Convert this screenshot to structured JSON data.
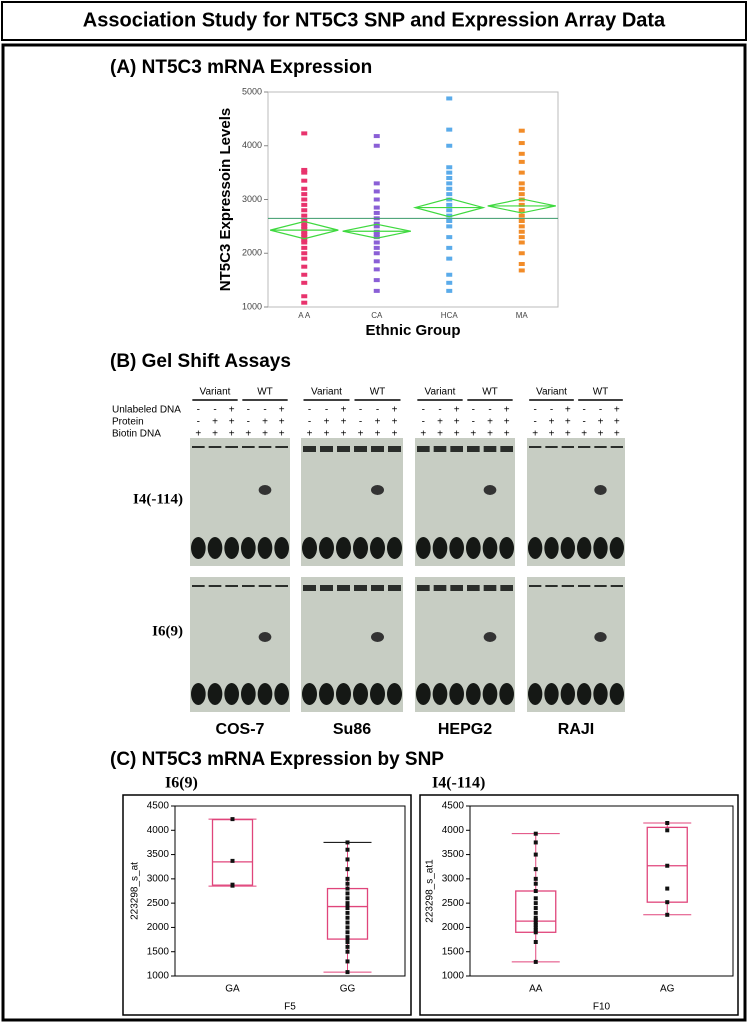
{
  "title": "Association Study for NT5C3 SNP and Expression Array Data",
  "panel_b": {
    "title": "(B)  Gel Shift Assays",
    "groups": [
      "Variant",
      "WT"
    ],
    "rows": [
      "Unlabeled DNA",
      "Protein",
      "Biotin DNA"
    ],
    "signs": [
      [
        "-",
        "-",
        "+",
        "-",
        "-",
        "+"
      ],
      [
        "-",
        "+",
        "+",
        "-",
        "+",
        "+"
      ],
      [
        "+",
        "+",
        "+",
        "+",
        "+",
        "+"
      ]
    ],
    "probes": [
      "I4(-114)",
      "I6(9)"
    ],
    "cell_lines": [
      "COS-7",
      "Su86",
      "HEPG2",
      "RAJI"
    ]
  },
  "panel_c_title": "(C)  NT5C3 mRNA Expression by SNP",
  "chart_data": [
    {
      "type": "strip",
      "title": "(A)  NT5C3 mRNA Expression",
      "x_label": "Ethnic Group",
      "y_label": "NT5C3 Expressoin Levels",
      "categories": [
        "A A",
        "CA",
        "HCA",
        "MA"
      ],
      "colors": [
        "#e8336d",
        "#8a5fd6",
        "#5aabea",
        "#f28c28"
      ],
      "values": [
        [
          1080,
          1200,
          1450,
          1600,
          1750,
          1900,
          2000,
          2100,
          2200,
          2250,
          2300,
          2350,
          2400,
          2450,
          2500,
          2550,
          2600,
          2700,
          2800,
          2900,
          3000,
          3100,
          3200,
          3350,
          3500,
          3550,
          4230
        ],
        [
          1300,
          1500,
          1700,
          1850,
          2000,
          2100,
          2200,
          2300,
          2350,
          2400,
          2500,
          2550,
          2650,
          2750,
          2850,
          3000,
          3150,
          3300,
          4000,
          4180
        ],
        [
          1300,
          1450,
          1600,
          1900,
          2100,
          2300,
          2500,
          2600,
          2700,
          2800,
          2900,
          3000,
          3100,
          3200,
          3300,
          3400,
          3500,
          3600,
          4000,
          4300,
          4880
        ],
        [
          1680,
          1800,
          2000,
          2200,
          2300,
          2400,
          2500,
          2600,
          2700,
          2800,
          2900,
          3000,
          3100,
          3200,
          3300,
          3500,
          3700,
          3850,
          4050,
          4280
        ]
      ],
      "means": [
        2430,
        2410,
        2850,
        2880
      ],
      "ci_low": [
        2270,
        2280,
        2680,
        2750
      ],
      "ci_high": [
        2590,
        2540,
        3020,
        3010
      ],
      "grand_mean": 2650,
      "diamond_color": "#3fd93f",
      "ylim": [
        1000,
        5000
      ],
      "yticks": [
        1000,
        2000,
        3000,
        4000,
        5000
      ]
    },
    {
      "type": "box",
      "title": "I6(9)",
      "x_label": "F5",
      "y_label": "223298_s_at",
      "categories": [
        "GA",
        "GG"
      ],
      "boxes": [
        {
          "min": 2850,
          "q1": 2870,
          "median": 3350,
          "q3": 4220,
          "max": 4230,
          "points": [
            4230,
            3370,
            2880,
            2860
          ]
        },
        {
          "min": 1080,
          "q1": 1760,
          "median": 2430,
          "q3": 2800,
          "max": 3750,
          "points": [
            1080,
            1300,
            1500,
            1600,
            1700,
            1750,
            1800,
            1900,
            2000,
            2100,
            2200,
            2300,
            2400,
            2450,
            2500,
            2600,
            2700,
            2800,
            2900,
            3000,
            3200,
            3400,
            3600,
            3750
          ]
        }
      ],
      "color": "#e0457b",
      "ylim": [
        1000,
        4500
      ],
      "yticks": [
        1000,
        1500,
        2000,
        2500,
        3000,
        3500,
        4000,
        4500
      ]
    },
    {
      "type": "box",
      "title": "I4(-114)",
      "x_label": "F10",
      "y_label": "223298_s_at1",
      "categories": [
        "AA",
        "AG"
      ],
      "boxes": [
        {
          "min": 1290,
          "q1": 1900,
          "median": 2130,
          "q3": 2750,
          "max": 3930,
          "points": [
            1290,
            1700,
            1900,
            1950,
            2000,
            2050,
            2100,
            2150,
            2200,
            2300,
            2400,
            2500,
            2600,
            2750,
            2900,
            3000,
            3200,
            3500,
            3750,
            3930
          ]
        },
        {
          "min": 2260,
          "q1": 2520,
          "median": 3270,
          "q3": 4060,
          "max": 4150,
          "points": [
            4150,
            4000,
            3270,
            2800,
            2520,
            2260
          ]
        }
      ],
      "color": "#e0457b",
      "ylim": [
        1000,
        4500
      ],
      "yticks": [
        1000,
        1500,
        2000,
        2500,
        3000,
        3500,
        4000,
        4500
      ]
    }
  ]
}
